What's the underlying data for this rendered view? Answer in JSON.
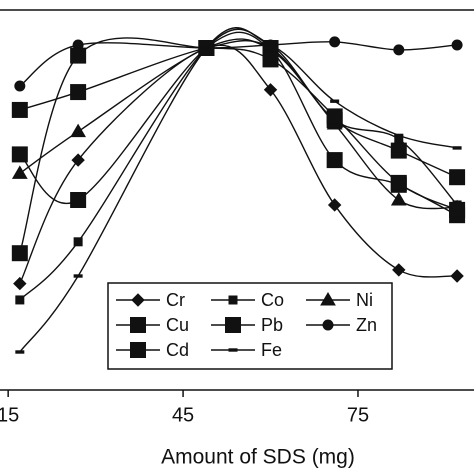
{
  "chart_data": {
    "type": "line",
    "x_label": "Amount of SDS (mg)",
    "x": [
      17,
      27,
      49,
      60,
      71,
      82,
      92
    ],
    "xlim": [
      13.6,
      94.9
    ],
    "xticks": [
      15,
      45,
      75
    ],
    "ylim": [
      0,
      100
    ],
    "series": [
      {
        "name": "Cr",
        "marker": "diamond",
        "color": "#111111",
        "values": [
          28,
          60.5,
          90,
          79,
          48.7,
          31.6,
          30
        ]
      },
      {
        "name": "Co",
        "marker": "small-square",
        "color": "#111111",
        "values": [
          23.7,
          39,
          90,
          90.8,
          71,
          66,
          48.7
        ]
      },
      {
        "name": "Ni",
        "marker": "triangle",
        "color": "#111111",
        "values": [
          57,
          68,
          90,
          89.5,
          70,
          50,
          48
        ]
      },
      {
        "name": "Cu",
        "marker": "square",
        "color": "#111111",
        "values": [
          62,
          50,
          90,
          89.5,
          60.5,
          54,
          46
        ]
      },
      {
        "name": "Pb",
        "marker": "square",
        "color": "#111111",
        "values": [
          73.7,
          78.4,
          90,
          90,
          71,
          63,
          56
        ]
      },
      {
        "name": "Zn",
        "marker": "circle",
        "color": "#111111",
        "values": [
          80,
          90.8,
          90,
          90.8,
          91.6,
          89.5,
          90.8
        ]
      },
      {
        "name": "Cd",
        "marker": "square",
        "color": "#111111",
        "values": [
          36,
          88,
          90,
          87,
          72,
          54.5,
          47.4
        ]
      },
      {
        "name": "Fe",
        "marker": "dash",
        "color": "#111111",
        "values": [
          10,
          30,
          90,
          90.8,
          76,
          67,
          63.7
        ]
      }
    ]
  }
}
